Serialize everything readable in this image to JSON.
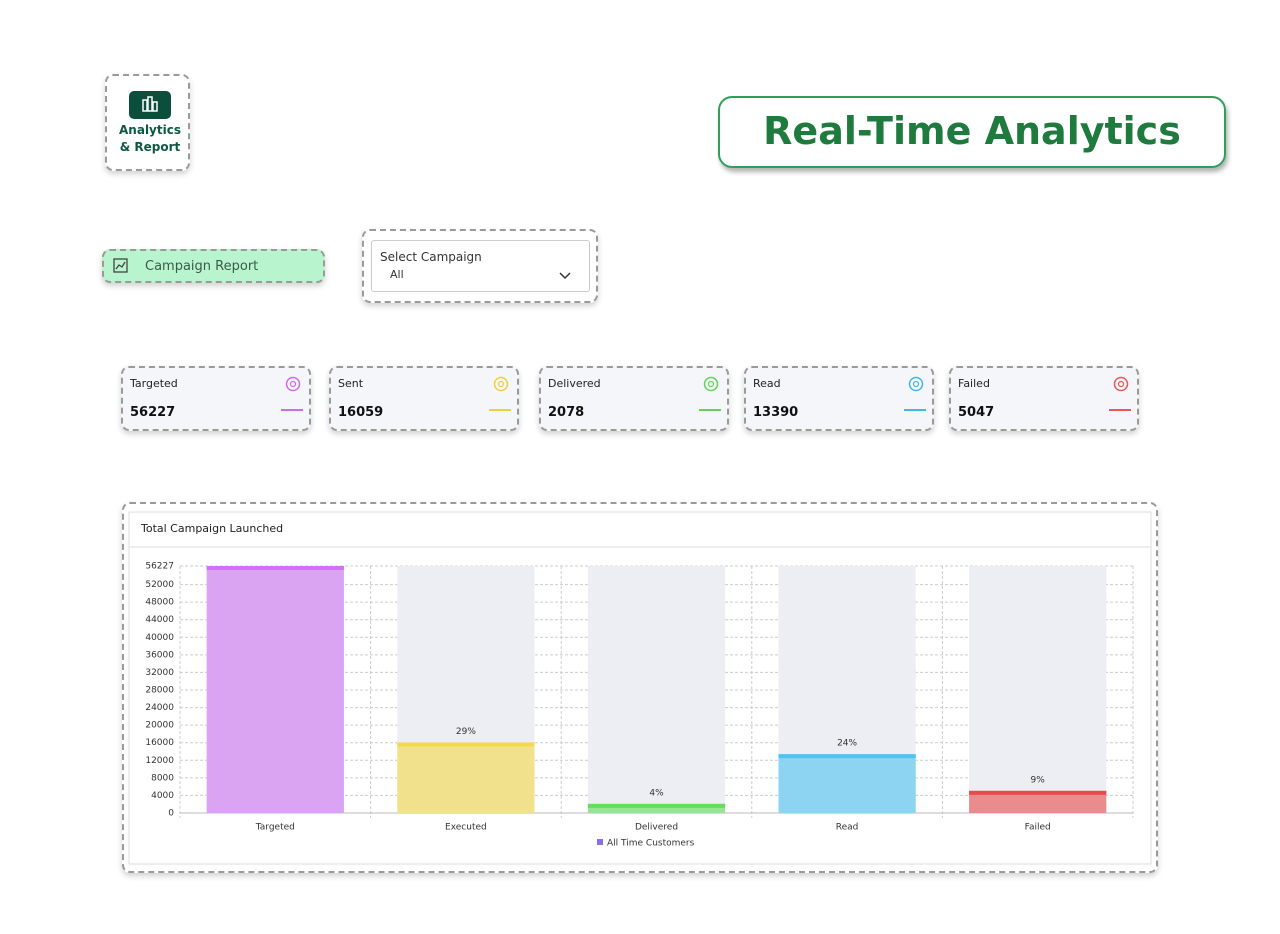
{
  "nav": {
    "label": "Analytics & Report"
  },
  "banner": {
    "title": "Real-Time Analytics"
  },
  "sidebar": {
    "item": "Campaign Report"
  },
  "select": {
    "label": "Select Campaign",
    "value": "All"
  },
  "stats": [
    {
      "label": "Targeted",
      "value": "56227",
      "color": "#d06be8"
    },
    {
      "label": "Sent",
      "value": "16059",
      "color": "#f2cf3a"
    },
    {
      "label": "Delivered",
      "value": "2078",
      "color": "#5fd35a"
    },
    {
      "label": "Read",
      "value": "13390",
      "color": "#3fb8e6"
    },
    {
      "label": "Failed",
      "value": "5047",
      "color": "#e85858"
    }
  ],
  "chart_data": {
    "type": "bar",
    "title": "Total Campaign Launched",
    "categories": [
      "Targeted",
      "Executed",
      "Delivered",
      "Read",
      "Failed"
    ],
    "series": [
      {
        "name": "All Time Customers",
        "color": "#8a6ee8",
        "values": [
          56227,
          16059,
          2078,
          13390,
          5047
        ]
      }
    ],
    "bar_colors": [
      "#cf73f2",
      "#f5d94a",
      "#67dc5f",
      "#4fc3f2",
      "#e84b4b"
    ],
    "annotations": [
      null,
      "29%",
      "4%",
      "24%",
      "9%"
    ],
    "ylim": [
      0,
      56227
    ],
    "yticks": [
      0,
      4000,
      8000,
      12000,
      16000,
      20000,
      24000,
      28000,
      32000,
      36000,
      40000,
      44000,
      48000,
      52000,
      56227
    ],
    "grid": true
  }
}
